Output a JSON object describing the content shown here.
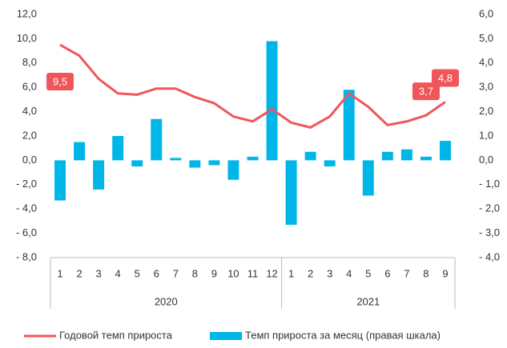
{
  "chart_data": {
    "type": "combo",
    "categories": [
      "1",
      "2",
      "3",
      "4",
      "5",
      "6",
      "7",
      "8",
      "9",
      "10",
      "11",
      "12",
      "1",
      "2",
      "3",
      "4",
      "5",
      "6",
      "7",
      "8",
      "9"
    ],
    "groups": [
      {
        "label": "2020",
        "count": 12
      },
      {
        "label": "2021",
        "count": 9
      }
    ],
    "series": [
      {
        "name": "Годовой темп прироста",
        "type": "line",
        "color": "#f0555a",
        "axis": "y",
        "values": [
          9.5,
          8.6,
          6.7,
          5.5,
          5.4,
          5.9,
          5.9,
          5.2,
          4.7,
          3.6,
          3.2,
          4.2,
          3.1,
          2.7,
          3.6,
          5.5,
          4.4,
          2.9,
          3.2,
          3.7,
          4.8
        ],
        "value_labels": [
          "9,5",
          null,
          null,
          null,
          null,
          null,
          null,
          null,
          null,
          null,
          null,
          null,
          null,
          null,
          null,
          null,
          null,
          null,
          null,
          "3,7",
          "4,8"
        ]
      },
      {
        "name": "Темп прироста за месяц (правая шкала)",
        "type": "bar",
        "color": "#00b5e8",
        "axis": "y2",
        "values": [
          -1.65,
          0.75,
          -1.2,
          1.0,
          -0.25,
          1.7,
          0.1,
          -0.3,
          -0.2,
          -0.8,
          0.15,
          4.9,
          -2.65,
          0.35,
          -0.25,
          2.9,
          -1.45,
          0.35,
          0.45,
          0.15,
          0.8
        ]
      }
    ],
    "ylim": [
      -8,
      12
    ],
    "yticks": [
      {
        "value": -8,
        "label": "- 8,0"
      },
      {
        "value": -6,
        "label": "- 6,0"
      },
      {
        "value": -4,
        "label": "- 4,0"
      },
      {
        "value": -2,
        "label": "- 2,0"
      },
      {
        "value": 0,
        "label": "0,0"
      },
      {
        "value": 2,
        "label": "2,0"
      },
      {
        "value": 4,
        "label": "4,0"
      },
      {
        "value": 6,
        "label": "6,0"
      },
      {
        "value": 8,
        "label": "8,0"
      },
      {
        "value": 10,
        "label": "10,0"
      },
      {
        "value": 12,
        "label": "12,0"
      }
    ],
    "y2lim": [
      -4,
      6
    ],
    "y2ticks": [
      {
        "value": -4,
        "label": "- 4,0"
      },
      {
        "value": -3,
        "label": "- 3,0"
      },
      {
        "value": -2,
        "label": "- 2,0"
      },
      {
        "value": -1,
        "label": "- 1,0"
      },
      {
        "value": 0,
        "label": "0,0"
      },
      {
        "value": 1,
        "label": "1,0"
      },
      {
        "value": 2,
        "label": "2,0"
      },
      {
        "value": 3,
        "label": "3,0"
      },
      {
        "value": 4,
        "label": "4,0"
      },
      {
        "value": 5,
        "label": "5,0"
      },
      {
        "value": 6,
        "label": "6,0"
      }
    ],
    "legend": "bottom"
  }
}
